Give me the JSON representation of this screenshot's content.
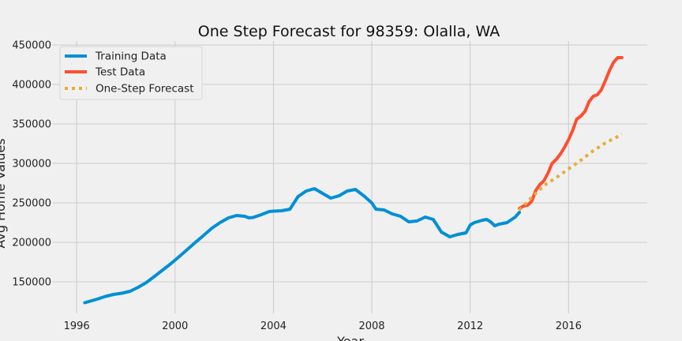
{
  "chart_data": {
    "type": "line",
    "title": "One Step Forecast for 98359: Olalla, WA",
    "xlabel": "Year",
    "ylabel": "Avg Home Values",
    "xlim": [
      1995.0,
      2019.2
    ],
    "ylim": [
      110000,
      455000
    ],
    "x_ticks": [
      1996,
      2000,
      2004,
      2008,
      2012,
      2016
    ],
    "y_ticks": [
      150000,
      200000,
      250000,
      300000,
      350000,
      400000,
      450000
    ],
    "grid": true,
    "legend_position": "top-left",
    "colors": {
      "training": "#008fd5",
      "test": "#fc4f30",
      "forecast": "#e5ae38",
      "background": "#f0f0f0",
      "grid": "#cbcbcb"
    },
    "series": [
      {
        "name": "Training Data",
        "style": "solid",
        "x": [
          1996.33,
          1996.83,
          1997.17,
          1997.5,
          1997.83,
          1998.17,
          1998.5,
          1998.83,
          1999.17,
          1999.5,
          1999.83,
          2000.17,
          2000.5,
          2000.83,
          2001.17,
          2001.5,
          2001.83,
          2002.17,
          2002.5,
          2002.83,
          2003.0,
          2003.17,
          2003.5,
          2003.83,
          2004.0,
          2004.33,
          2004.67,
          2005.0,
          2005.33,
          2005.67,
          2006.0,
          2006.33,
          2006.67,
          2007.0,
          2007.33,
          2007.67,
          2008.0,
          2008.17,
          2008.5,
          2008.83,
          2009.17,
          2009.5,
          2009.83,
          2010.17,
          2010.5,
          2010.83,
          2011.17,
          2011.5,
          2011.83,
          2012.0,
          2012.17,
          2012.5,
          2012.67,
          2012.83,
          2013.0,
          2013.17,
          2013.5,
          2013.83,
          2014.0
        ],
        "y": [
          123500,
          128000,
          131500,
          134000,
          135500,
          138000,
          143000,
          149000,
          157000,
          165000,
          173000,
          182000,
          191000,
          200000,
          209000,
          218000,
          225000,
          231000,
          234000,
          233000,
          231000,
          231500,
          235000,
          239000,
          239500,
          240000,
          242000,
          258000,
          265000,
          268000,
          262000,
          256000,
          259000,
          265000,
          267000,
          259000,
          250000,
          242000,
          241000,
          236000,
          233000,
          226000,
          227000,
          232000,
          229000,
          213000,
          207000,
          210000,
          212000,
          222000,
          225000,
          228000,
          229000,
          226000,
          221000,
          223000,
          225000,
          232000,
          238000
        ]
      },
      {
        "name": "Test Data",
        "style": "solid",
        "x": [
          2014.0,
          2014.17,
          2014.33,
          2014.5,
          2014.67,
          2014.83,
          2015.0,
          2015.17,
          2015.33,
          2015.5,
          2015.67,
          2015.83,
          2016.0,
          2016.17,
          2016.33,
          2016.5,
          2016.67,
          2016.83,
          2017.0,
          2017.17,
          2017.33,
          2017.5,
          2017.67,
          2017.83,
          2018.0,
          2018.17
        ],
        "y": [
          243000,
          246000,
          247000,
          252000,
          266000,
          273000,
          278000,
          288000,
          300000,
          305000,
          312000,
          320000,
          330000,
          342000,
          356000,
          360000,
          366000,
          378000,
          385000,
          387000,
          393000,
          405000,
          418000,
          428000,
          434000,
          434000
        ]
      },
      {
        "name": "One-Step Forecast",
        "style": "dotted",
        "x": [
          2014.0,
          2014.5,
          2015.0,
          2015.5,
          2016.0,
          2016.5,
          2017.0,
          2017.5,
          2018.0,
          2018.17
        ],
        "y": [
          241000,
          257000,
          272000,
          282000,
          293000,
          304000,
          316000,
          326000,
          334000,
          337000
        ]
      }
    ]
  }
}
